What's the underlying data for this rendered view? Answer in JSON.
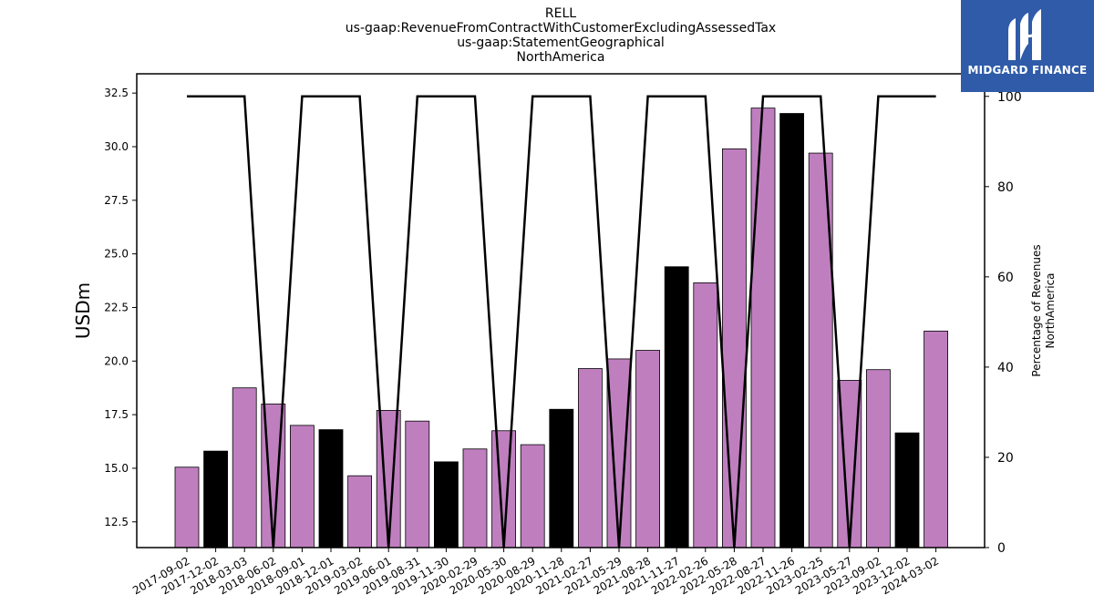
{
  "chart_data": {
    "type": "bar",
    "title": [
      "RELL",
      "us-gaap:RevenueFromContractWithCustomerExcludingAssessedTax",
      "us-gaap:StatementGeographical",
      "NorthAmerica"
    ],
    "ylabel": "USDm",
    "y2label": [
      "Percentage of Revenues",
      "NorthAmerica"
    ],
    "ylim": [
      11.3,
      33.4
    ],
    "y2lim": [
      0,
      105
    ],
    "yticks": [
      "12.5",
      "15.0",
      "17.5",
      "20.0",
      "22.5",
      "25.0",
      "27.5",
      "30.0",
      "32.5"
    ],
    "y2ticks": [
      "0",
      "20",
      "40",
      "60",
      "80",
      "100"
    ],
    "categories": [
      "2017-09-02",
      "2017-12-02",
      "2018-03-03",
      "2018-06-02",
      "2018-09-01",
      "2018-12-01",
      "2019-03-02",
      "2019-06-01",
      "2019-08-31",
      "2019-11-30",
      "2020-02-29",
      "2020-05-30",
      "2020-08-29",
      "2020-11-28",
      "2021-02-27",
      "2021-05-29",
      "2021-08-28",
      "2021-11-27",
      "2022-02-26",
      "2022-05-28",
      "2022-08-27",
      "2022-11-26",
      "2023-02-25",
      "2023-05-27",
      "2023-09-02",
      "2023-12-02",
      "2024-03-02"
    ],
    "values": [
      15.05,
      15.8,
      18.75,
      18.0,
      17.0,
      16.8,
      14.65,
      17.7,
      17.2,
      15.3,
      15.9,
      16.75,
      16.1,
      17.75,
      19.65,
      20.1,
      20.5,
      24.4,
      23.65,
      29.9,
      31.8,
      31.55,
      29.7,
      19.1,
      19.6,
      16.65,
      21.4
    ],
    "bar_colors": [
      "#bf7fbf",
      "#000000",
      "#bf7fbf",
      "#bf7fbf",
      "#bf7fbf",
      "#000000",
      "#bf7fbf",
      "#bf7fbf",
      "#bf7fbf",
      "#000000",
      "#bf7fbf",
      "#bf7fbf",
      "#bf7fbf",
      "#000000",
      "#bf7fbf",
      "#bf7fbf",
      "#bf7fbf",
      "#000000",
      "#bf7fbf",
      "#bf7fbf",
      "#bf7fbf",
      "#000000",
      "#bf7fbf",
      "#bf7fbf",
      "#bf7fbf",
      "#000000",
      "#bf7fbf"
    ],
    "line_percent": [
      100,
      100,
      100,
      0,
      100,
      100,
      100,
      0,
      100,
      100,
      100,
      0,
      100,
      100,
      100,
      0,
      100,
      100,
      100,
      0,
      100,
      100,
      100,
      0,
      100,
      100,
      100
    ],
    "colors": {
      "bar_primary": "#bf7fbf",
      "bar_alt": "#000000",
      "line": "#000000"
    },
    "grid": false,
    "legend": "none"
  },
  "logo": {
    "text": "MIDGARD FINANCE",
    "background": "#2f5ba8"
  }
}
